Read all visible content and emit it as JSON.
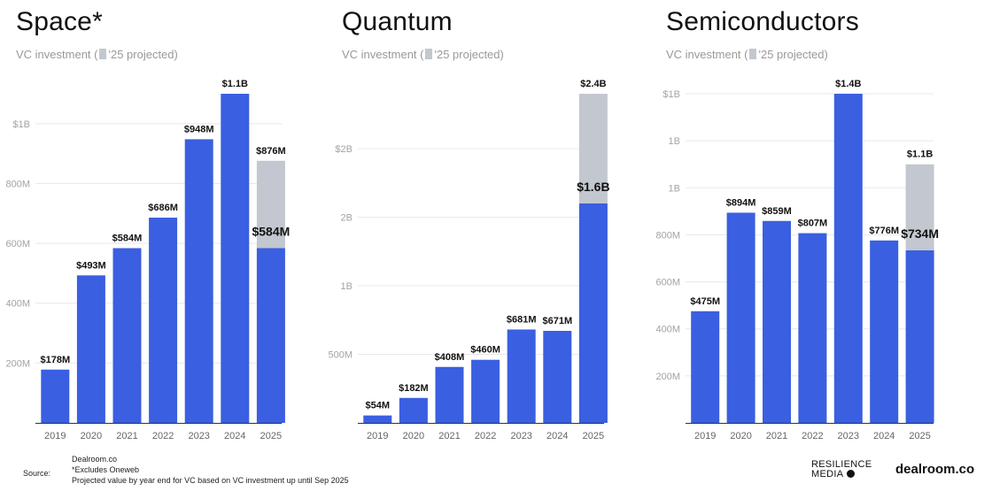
{
  "colors": {
    "invested": "#3a5fe0",
    "projected": "#c3c7cf"
  },
  "subtitle_prefix": "VC investment (",
  "subtitle_suffix": "'25 projected)",
  "chart_data": [
    {
      "type": "bar",
      "title": "Space*",
      "categories": [
        "2019",
        "2020",
        "2021",
        "2022",
        "2023",
        "2024",
        "2025"
      ],
      "series": [
        {
          "name": "VC investment",
          "values": [
            178,
            493,
            584,
            686,
            948,
            1100,
            584
          ]
        },
        {
          "name": "'25 projected",
          "values": [
            0,
            0,
            0,
            0,
            0,
            0,
            292
          ]
        }
      ],
      "data_labels": [
        "$178M",
        "$493M",
        "$584M",
        "$686M",
        "$948M",
        "$1.1B",
        "$876M"
      ],
      "inner_label": "$584M",
      "yticks": [
        {
          "value": 200,
          "label": "200M"
        },
        {
          "value": 400,
          "label": "400M"
        },
        {
          "value": 600,
          "label": "600M"
        },
        {
          "value": 800,
          "label": "800M"
        },
        {
          "value": 1000,
          "label": "$1B"
        }
      ],
      "ylim": [
        0,
        1100
      ],
      "unit": "$M"
    },
    {
      "type": "bar",
      "title": "Quantum",
      "categories": [
        "2019",
        "2020",
        "2021",
        "2022",
        "2023",
        "2024",
        "2025"
      ],
      "series": [
        {
          "name": "VC investment",
          "values": [
            54,
            182,
            408,
            460,
            681,
            671,
            1600
          ]
        },
        {
          "name": "'25 projected",
          "values": [
            0,
            0,
            0,
            0,
            0,
            0,
            800
          ]
        }
      ],
      "data_labels": [
        "$54M",
        "$182M",
        "$408M",
        "$460M",
        "$681M",
        "$671M",
        "$2.4B"
      ],
      "inner_label": "$1.6B",
      "yticks": [
        {
          "value": 500,
          "label": "500M"
        },
        {
          "value": 1000,
          "label": "1B"
        },
        {
          "value": 1500,
          "label": "2B"
        },
        {
          "value": 2000,
          "label": "$2B"
        }
      ],
      "ylim": [
        0,
        2400
      ],
      "unit": "$M"
    },
    {
      "type": "bar",
      "title": "Semiconductors",
      "categories": [
        "2019",
        "2020",
        "2021",
        "2022",
        "2023",
        "2024",
        "2025"
      ],
      "series": [
        {
          "name": "VC investment",
          "values": [
            475,
            894,
            859,
            807,
            1400,
            776,
            734
          ]
        },
        {
          "name": "'25 projected",
          "values": [
            0,
            0,
            0,
            0,
            0,
            0,
            366
          ]
        }
      ],
      "data_labels": [
        "$475M",
        "$894M",
        "$859M",
        "$807M",
        "$1.4B",
        "$776M",
        "$1.1B"
      ],
      "inner_label": "$734M",
      "yticks": [
        {
          "value": 200,
          "label": "200M"
        },
        {
          "value": 400,
          "label": "400M"
        },
        {
          "value": 600,
          "label": "600M"
        },
        {
          "value": 800,
          "label": "800M"
        },
        {
          "value": 1000,
          "label": "1B"
        },
        {
          "value": 1200,
          "label": "1B"
        },
        {
          "value": 1400,
          "label": "$1B"
        }
      ],
      "ylim": [
        0,
        1400
      ],
      "unit": "$M"
    }
  ],
  "footer": {
    "source_label": "Source:",
    "lines": [
      "Dealroom.co",
      "*Excludes Oneweb",
      "Projected value by year end for VC based on VC investment up until Sep 2025"
    ]
  },
  "brands": {
    "resilience_line1": "RESILIENCE",
    "resilience_line2": "MEDIA",
    "dealroom": "dealroom.co"
  }
}
